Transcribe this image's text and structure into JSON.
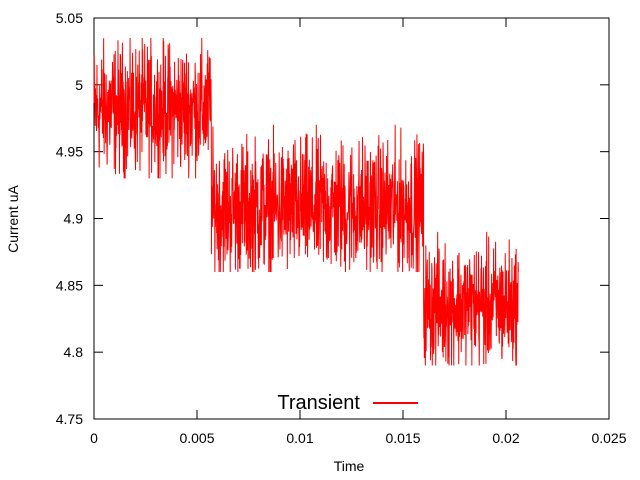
{
  "chart_data": {
    "type": "line",
    "title": "",
    "xlabel": "Time",
    "ylabel": "Current uA",
    "xlim": [
      0,
      0.025
    ],
    "ylim": [
      4.75,
      5.05
    ],
    "x_ticks": [
      0,
      0.005,
      0.01,
      0.015,
      0.02,
      0.025
    ],
    "x_tick_labels": [
      "0",
      "0.005",
      "0.01",
      "0.015",
      "0.02",
      "0.025"
    ],
    "y_ticks": [
      4.75,
      4.8,
      4.85,
      4.9,
      4.95,
      5,
      5.05
    ],
    "y_tick_labels": [
      "4.75",
      "4.8",
      "4.85",
      "4.9",
      "4.95",
      "5",
      "5.05"
    ],
    "grid": false,
    "legend_position": "bottom-center",
    "series": [
      {
        "name": "Transient",
        "color": "#ff0000",
        "segments": [
          {
            "x_start": 0.0,
            "x_end": 0.0057,
            "mean": 4.982,
            "min": 4.93,
            "max": 5.035
          },
          {
            "x_start": 0.0057,
            "x_end": 0.016,
            "mean": 4.908,
            "min": 4.86,
            "max": 4.97
          },
          {
            "x_start": 0.016,
            "x_end": 0.0206,
            "mean": 4.835,
            "min": 4.79,
            "max": 4.89
          }
        ]
      }
    ]
  }
}
